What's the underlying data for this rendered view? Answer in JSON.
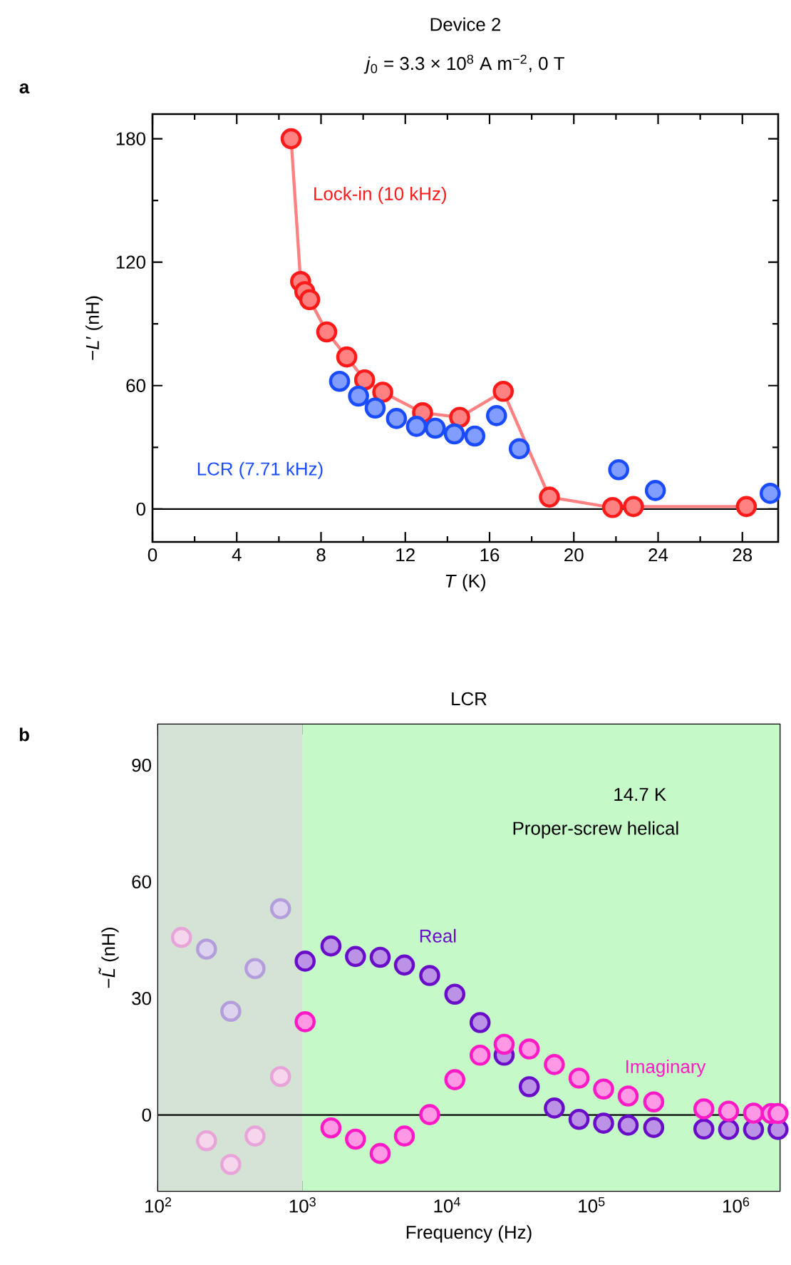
{
  "chart_data": [
    {
      "type": "line",
      "title": "Device 2",
      "subtitle": "*j*$_{0}$ = 3.3 × 10$^{8}$ A m$^{−2}$, 0 T",
      "xlabel": "*T* (K)",
      "ylabel": "−*L*′ (nH)",
      "annotations": [
        "a"
      ],
      "xlim": [
        0,
        29.7
      ],
      "ylim": [
        -16,
        192
      ],
      "xticks": [
        0,
        4,
        8,
        12,
        16,
        20,
        24,
        28
      ],
      "yticks": [
        0,
        60,
        120,
        180
      ],
      "marker": "circle",
      "ref_lines": [
        {
          "axis": "y",
          "value": 0
        }
      ],
      "series": [
        {
          "name": "Lock-in (10 kHz)",
          "type": "line",
          "color": "#ff1a1a",
          "x": [
            6.58,
            7.03,
            7.23,
            7.46,
            8.27,
            9.22,
            10.07,
            10.93,
            12.82,
            14.58,
            16.65,
            18.84,
            21.84,
            22.83,
            28.19
          ],
          "values": [
            180,
            110.6,
            105.7,
            101.8,
            86.1,
            73.9,
            62.8,
            56.8,
            46.8,
            44.6,
            57.2,
            5.8,
            0.7,
            1.2,
            1.2
          ]
        },
        {
          "name": "LCR (7.71 kHz)",
          "type": "scatter",
          "color": "#1a4cff",
          "x": [
            8.88,
            9.78,
            10.57,
            11.58,
            12.53,
            13.42,
            14.33,
            15.3,
            16.33,
            17.41,
            22.13,
            23.87,
            29.32
          ],
          "values": [
            62.1,
            54.9,
            49.1,
            44,
            40.2,
            39.3,
            36.5,
            35.5,
            45.4,
            29.3,
            19.1,
            9,
            7.6
          ]
        }
      ]
    },
    {
      "type": "scatter",
      "title": "LCR",
      "xlabel": "Frequency (Hz)",
      "ylabel": "−*L̃* (nH)",
      "annotations": [
        "b",
        "14.7 K",
        "Proper-screw helical"
      ],
      "log": "x",
      "xlim": [
        100,
        2000000
      ],
      "ylim": [
        -19.5,
        100.5
      ],
      "xticks": [
        {
          "value": 100,
          "label": "10$^{2}$"
        },
        {
          "value": 1000,
          "label": "10$^{3}$"
        },
        {
          "value": 10000,
          "label": "10$^{4}$"
        },
        {
          "value": 100000,
          "label": "10$^{5}$"
        },
        {
          "value": 1000000,
          "label": "10$^{6}$"
        }
      ],
      "yticks": [
        0,
        30,
        60,
        90
      ],
      "marker": "circle",
      "bands": [
        {
          "axis": "x",
          "from": 100,
          "to": 1000,
          "color": "#d5e3d5"
        },
        {
          "axis": "x",
          "from": 1000,
          "to": 2000000,
          "color": "#c5fac8"
        }
      ],
      "ref_lines": [
        {
          "axis": "y",
          "value": 0
        }
      ],
      "series": [
        {
          "name": "Real",
          "color": "#6a0dc8",
          "x": [
            216,
            318,
            468,
            703,
            1040,
            1570,
            2320,
            3440,
            5060,
            7570,
            11300,
            16900,
            24800,
            37000,
            55200,
            81800,
            121000,
            179000,
            269000,
            598000,
            887000,
            1320000,
            1750000,
            1950000
          ],
          "values": [
            42.7,
            26.7,
            37.7,
            53.1,
            39.6,
            43.5,
            40.8,
            40.6,
            38.6,
            35.9,
            31.1,
            23.8,
            15.4,
            7.3,
            1.8,
            -1.1,
            -2.1,
            -2.6,
            -3.2,
            -3.6,
            -3.7,
            -3.7,
            null,
            -3.7
          ],
          "colors": [
            "#b39ddb",
            "#b39ddb",
            "#b39ddb",
            "#b39ddb",
            "#6a0dc8",
            "#6a0dc8",
            "#6a0dc8",
            "#6a0dc8",
            "#6a0dc8",
            "#6a0dc8",
            "#6a0dc8",
            "#6a0dc8",
            "#6a0dc8",
            "#6a0dc8",
            "#6a0dc8",
            "#6a0dc8",
            "#6a0dc8",
            "#6a0dc8",
            "#6a0dc8",
            "#6a0dc8",
            "#6a0dc8",
            "#6a0dc8",
            "#6a0dc8",
            "#6a0dc8"
          ]
        },
        {
          "name": "Imaginary",
          "color": "#ff1ac6",
          "x": [
            145,
            216,
            318,
            468,
            703,
            1040,
            1570,
            2320,
            3440,
            5060,
            7570,
            11300,
            16900,
            24800,
            37000,
            55200,
            81800,
            121000,
            179000,
            269000,
            598000,
            887000,
            1320000,
            1750000,
            1950000
          ],
          "values": [
            45.7,
            -6.6,
            -12.7,
            -5.4,
            9.9,
            24.0,
            -3.3,
            -6.2,
            -9.9,
            -5.4,
            0.1,
            9.1,
            15.4,
            18.2,
            17.0,
            13.0,
            9.5,
            6.7,
            4.9,
            3.4,
            1.6,
            1.0,
            0.5,
            0.4,
            0.4
          ],
          "colors": [
            "#e8a4d8",
            "#e8a4d8",
            "#e8a4d8",
            "#e8a4d8",
            "#e8a4d8",
            "#ff1ac6",
            "#ff1ac6",
            "#ff1ac6",
            "#ff1ac6",
            "#ff1ac6",
            "#ff1ac6",
            "#ff1ac6",
            "#ff1ac6",
            "#ff1ac6",
            "#ff1ac6",
            "#ff1ac6",
            "#ff1ac6",
            "#ff1ac6",
            "#ff1ac6",
            "#ff1ac6",
            "#ff1ac6",
            "#ff1ac6",
            "#ff1ac6",
            "#ff1ac6",
            "#ff1ac6"
          ]
        }
      ]
    }
  ]
}
